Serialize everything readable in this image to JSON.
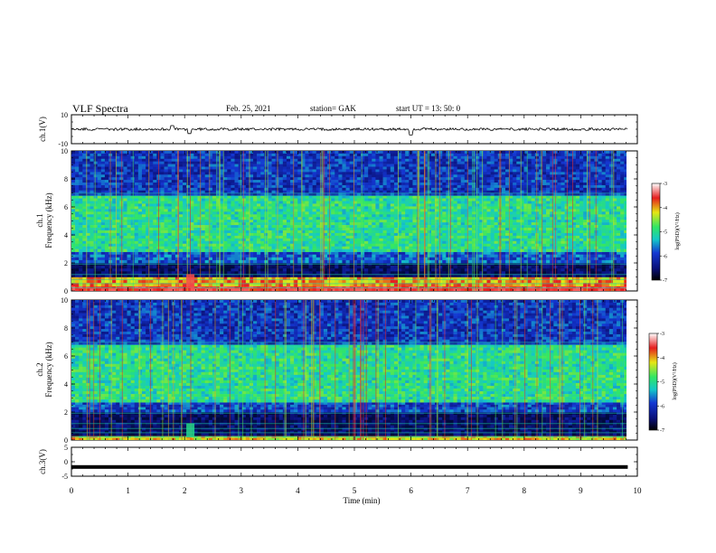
{
  "header": {
    "title": "VLF Spectra",
    "date": "Feb. 25, 2021",
    "station": "station= GAK",
    "start": "start  UT  =   13: 50: 0"
  },
  "colors": {
    "background": "#ffffff",
    "axis": "#000000",
    "spec_dark": "#000a3c",
    "spec_blue": "#1437d2",
    "spec_cyan": "#14c8c8",
    "spec_green": "#32e664",
    "spec_yellow": "#e6e614",
    "spec_red": "#e61e1e"
  },
  "chart_data": [
    {
      "type": "line",
      "name": "ch1-waveform",
      "ylabel": "ch.1(V)",
      "ylim": [
        -10,
        10
      ],
      "yticks": [
        "10",
        "-10"
      ],
      "xlim": [
        0,
        10
      ],
      "baseline": 0,
      "features": [
        {
          "x": 1.78,
          "y": 2.5
        },
        {
          "x": 2.08,
          "y": -3
        },
        {
          "x": 6.0,
          "y": -4
        }
      ]
    },
    {
      "type": "heatmap",
      "name": "ch1-spectrogram",
      "ylabel": "ch.1",
      "ylabel2": "Frequency (kHz)",
      "ylim": [
        0,
        10
      ],
      "yticks": [
        "0",
        "2",
        "4",
        "6",
        "8",
        "10"
      ],
      "xlim": [
        0,
        9.83
      ],
      "colorbar": {
        "label": "log(PSD)(V²/Hz)",
        "range": [
          -7,
          -3
        ],
        "ticks": [
          "-3",
          "-4",
          "-5",
          "-6",
          "-7"
        ]
      },
      "bands": [
        {
          "from": 0,
          "to": 0.35,
          "level": -3.3
        },
        {
          "from": 0.35,
          "to": 1.0,
          "level": -4.0
        },
        {
          "from": 1.0,
          "to": 2.0,
          "level": -6.7
        },
        {
          "from": 2.0,
          "to": 2.8,
          "level": -5.8
        },
        {
          "from": 2.8,
          "to": 6.8,
          "level": -5.0
        },
        {
          "from": 6.8,
          "to": 10.0,
          "level": -6.0
        }
      ]
    },
    {
      "type": "heatmap",
      "name": "ch2-spectrogram",
      "ylabel": "ch.2",
      "ylabel2": "Frequency (kHz)",
      "ylim": [
        0,
        10
      ],
      "yticks": [
        "0",
        "2",
        "4",
        "6",
        "8",
        "10"
      ],
      "xlim": [
        0,
        9.83
      ],
      "colorbar": {
        "label": "log(PSD)(V²/Hz)",
        "range": [
          -7,
          -3
        ],
        "ticks": [
          "-3",
          "-4",
          "-5",
          "-6",
          "-7"
        ]
      },
      "bands": [
        {
          "from": 0,
          "to": 0.3,
          "level": -4.2
        },
        {
          "from": 0.3,
          "to": 2.0,
          "level": -6.7
        },
        {
          "from": 2.0,
          "to": 2.7,
          "level": -5.9
        },
        {
          "from": 2.7,
          "to": 6.8,
          "level": -5.0
        },
        {
          "from": 6.8,
          "to": 10.0,
          "level": -6.0
        }
      ]
    },
    {
      "type": "line",
      "name": "ch3-waveform",
      "ylabel": "ch.3(V)",
      "ylim": [
        -5,
        5
      ],
      "yticks": [
        "5",
        "0",
        "-5"
      ],
      "xlim": [
        0,
        9.83
      ],
      "baseline": -1.8
    }
  ],
  "xaxis": {
    "label": "Time (min)",
    "ticks": [
      "0",
      "1",
      "2",
      "3",
      "4",
      "5",
      "6",
      "7",
      "8",
      "9",
      "10"
    ],
    "range": [
      0,
      10
    ]
  }
}
